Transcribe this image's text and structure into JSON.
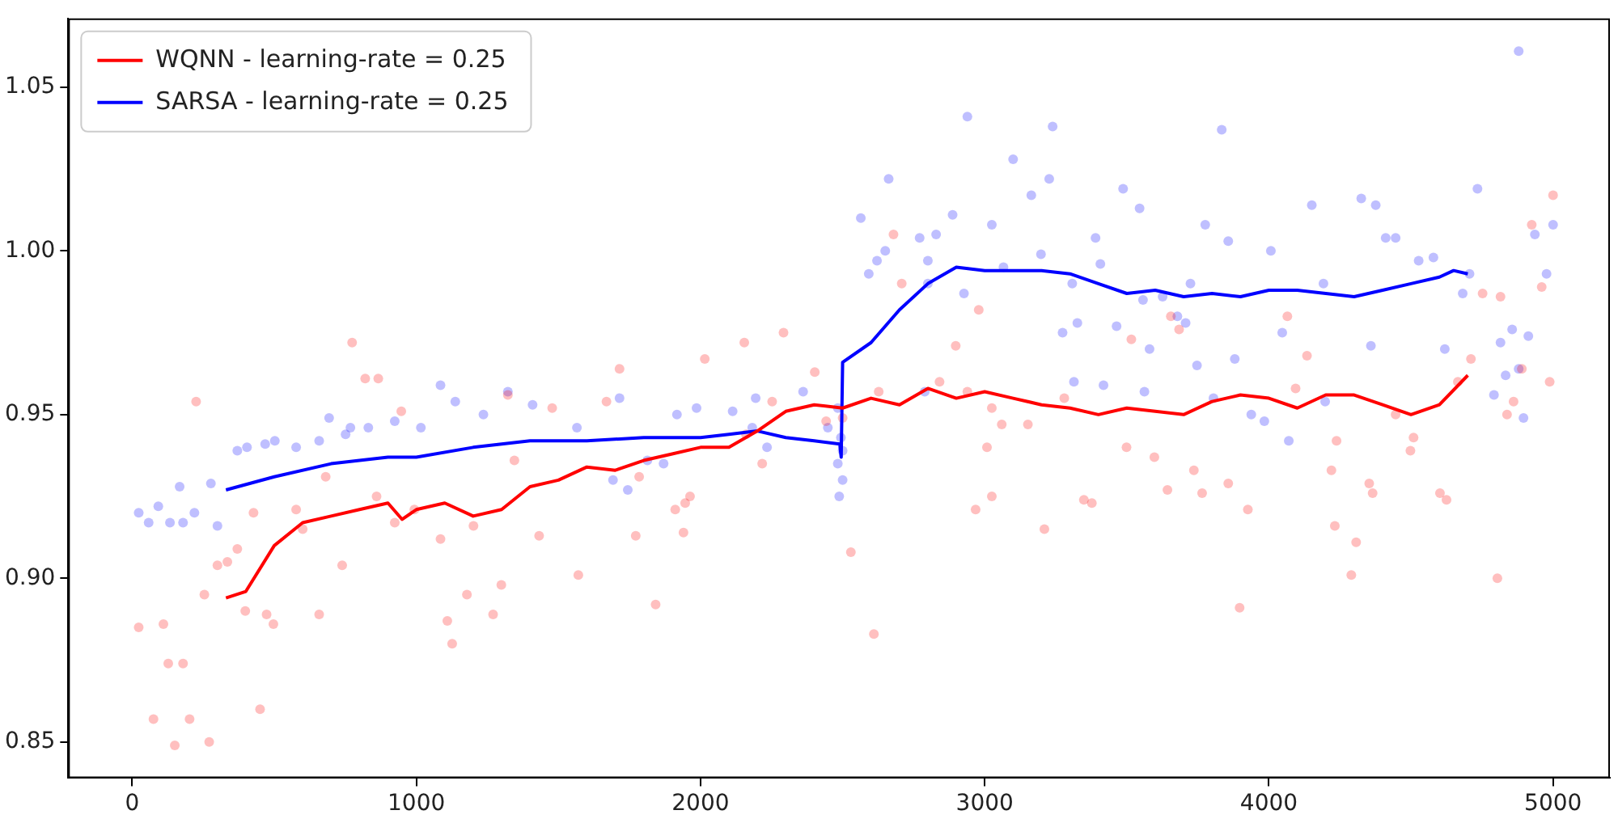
{
  "chart_data": {
    "type": "scatter",
    "xlim": [
      -225,
      5200
    ],
    "ylim": [
      0.839,
      1.071
    ],
    "xticks": [
      0,
      1000,
      2000,
      3000,
      4000,
      5000
    ],
    "yticks": [
      {
        "value": 0.85,
        "label": "0.85"
      },
      {
        "value": 0.9,
        "label": "0.90"
      },
      {
        "value": 0.95,
        "label": "0.95"
      },
      {
        "value": 1.0,
        "label": "1.00"
      },
      {
        "value": 1.05,
        "label": "1.05"
      }
    ],
    "grid": false,
    "legend": "top left",
    "series": [
      {
        "marker": "circle",
        "color": "#ff0000",
        "x": [
          23,
          75,
          110,
          127,
          179,
          150,
          202,
          225,
          271,
          254,
          300,
          335,
          370,
          398,
          427,
          450,
          473,
          497,
          577,
          600,
          681,
          658,
          739,
          774,
          820,
          866,
          924,
          860,
          947,
          993,
          1085,
          1109,
          1126,
          1201,
          1178,
          1270,
          1299,
          1345,
          1322,
          1432,
          1478,
          1570,
          1669,
          1715,
          1784,
          1842,
          1772,
          1911,
          1946,
          1963,
          1940,
          2015,
          2154,
          2160,
          2217,
          2252,
          2292,
          2402,
          2442,
          2500,
          2529,
          2610,
          2679,
          2708,
          2627,
          2898,
          2979,
          2939,
          2841,
          3025,
          3025,
          3060,
          3152,
          3210,
          3280,
          3349,
          3377,
          3008,
          2968,
          3499,
          3516,
          3655,
          3684,
          3597,
          3643,
          3765,
          3736,
          3857,
          3897,
          3926,
          4065,
          4094,
          4134,
          4220,
          4232,
          4307,
          4290,
          4238,
          4353,
          4365,
          4446,
          4498,
          4509,
          4602,
          4625,
          4665,
          4711,
          4752,
          4815,
          4838,
          4861,
          4890,
          4804,
          4988,
          5000,
          4960,
          4925
        ],
        "values": [
          0.885,
          0.857,
          0.886,
          0.874,
          0.874,
          0.849,
          0.857,
          0.954,
          0.85,
          0.895,
          0.904,
          0.905,
          0.909,
          0.89,
          0.92,
          0.86,
          0.889,
          0.886,
          0.921,
          0.915,
          0.931,
          0.889,
          0.904,
          0.972,
          0.961,
          0.961,
          0.917,
          0.925,
          0.951,
          0.921,
          0.912,
          0.887,
          0.88,
          0.916,
          0.895,
          0.889,
          0.898,
          0.936,
          0.956,
          0.913,
          0.952,
          0.901,
          0.954,
          0.964,
          0.931,
          0.892,
          0.913,
          0.921,
          0.923,
          0.925,
          0.914,
          0.967,
          0.972,
          0.944,
          0.935,
          0.954,
          0.975,
          0.963,
          0.948,
          0.949,
          0.908,
          0.883,
          1.005,
          0.99,
          0.957,
          0.971,
          0.982,
          0.957,
          0.96,
          0.952,
          0.925,
          0.947,
          0.947,
          0.915,
          0.955,
          0.924,
          0.923,
          0.94,
          0.921,
          0.94,
          0.973,
          0.98,
          0.976,
          0.937,
          0.927,
          0.926,
          0.933,
          0.929,
          0.891,
          0.921,
          0.98,
          0.958,
          0.968,
          0.933,
          0.916,
          0.911,
          0.901,
          0.942,
          0.929,
          0.926,
          0.95,
          0.939,
          0.943,
          0.926,
          0.924,
          0.96,
          0.967,
          0.987,
          0.986,
          0.95,
          0.954,
          0.964,
          0.9,
          0.96,
          1.017,
          0.989,
          1.008
        ]
      },
      {
        "marker": "circle",
        "color": "#0000ff",
        "x": [
          23,
          58,
          92,
          133,
          179,
          219,
          167,
          300,
          277,
          370,
          404,
          468,
          502,
          577,
          658,
          693,
          751,
          768,
          831,
          924,
          1016,
          1085,
          1137,
          1236,
          1322,
          1409,
          1565,
          1715,
          1692,
          1744,
          1813,
          1870,
          1917,
          1986,
          2113,
          2182,
          2194,
          2234,
          2361,
          2448,
          2483,
          2488,
          2483,
          2494,
          2500,
          2500,
          2662,
          2650,
          2564,
          2592,
          2621,
          2771,
          2800,
          2800,
          2829,
          2789,
          2887,
          2927,
          2939,
          3025,
          3066,
          3100,
          3164,
          3227,
          3198,
          3239,
          3274,
          3308,
          3326,
          3390,
          3407,
          3418,
          3314,
          3464,
          3487,
          3545,
          3557,
          3580,
          3562,
          3626,
          3678,
          3707,
          3724,
          3747,
          3776,
          3805,
          3834,
          3857,
          3880,
          3938,
          3984,
          4007,
          4047,
          4070,
          4151,
          4192,
          4198,
          4325,
          4359,
          4376,
          4411,
          4446,
          4527,
          4579,
          4619,
          4682,
          4706,
          4734,
          4792,
          4815,
          4833,
          4856,
          4879,
          4913,
          4977,
          4936,
          5000,
          4879,
          4896
        ],
        "values": [
          0.92,
          0.917,
          0.922,
          0.917,
          0.917,
          0.92,
          0.928,
          0.916,
          0.929,
          0.939,
          0.94,
          0.941,
          0.942,
          0.94,
          0.942,
          0.949,
          0.944,
          0.946,
          0.946,
          0.948,
          0.946,
          0.959,
          0.954,
          0.95,
          0.957,
          0.953,
          0.946,
          0.955,
          0.93,
          0.927,
          0.936,
          0.935,
          0.95,
          0.952,
          0.951,
          0.946,
          0.955,
          0.94,
          0.957,
          0.946,
          0.952,
          0.925,
          0.935,
          0.943,
          0.93,
          0.939,
          1.022,
          1.0,
          1.01,
          0.993,
          0.997,
          1.004,
          0.997,
          0.99,
          1.005,
          0.957,
          1.011,
          0.987,
          1.041,
          1.008,
          0.995,
          1.028,
          1.017,
          1.022,
          0.999,
          1.038,
          0.975,
          0.99,
          0.978,
          1.004,
          0.996,
          0.959,
          0.96,
          0.977,
          1.019,
          1.013,
          0.985,
          0.97,
          0.957,
          0.986,
          0.98,
          0.978,
          0.99,
          0.965,
          1.008,
          0.955,
          1.037,
          1.003,
          0.967,
          0.95,
          0.948,
          1.0,
          0.975,
          0.942,
          1.014,
          0.99,
          0.954,
          1.016,
          0.971,
          1.014,
          1.004,
          1.004,
          0.997,
          0.998,
          0.97,
          0.987,
          0.993,
          1.019,
          0.956,
          0.972,
          0.962,
          0.976,
          0.964,
          0.974,
          0.993,
          1.005,
          1.008,
          1.061,
          0.949
        ]
      },
      {
        "type": "line",
        "marker": "none",
        "name": "WQNN - learning-rate = 0.25",
        "color": "#ff0000",
        "x": [
          330,
          400,
          500,
          600,
          700,
          800,
          900,
          950,
          1000,
          1100,
          1200,
          1300,
          1400,
          1500,
          1600,
          1700,
          1800,
          1900,
          2000,
          2100,
          2200,
          2300,
          2400,
          2500,
          2600,
          2700,
          2800,
          2900,
          3000,
          3100,
          3200,
          3300,
          3400,
          3500,
          3600,
          3700,
          3800,
          3900,
          4000,
          4100,
          4200,
          4300,
          4400,
          4500,
          4600,
          4700
        ],
        "values": [
          0.894,
          0.896,
          0.91,
          0.917,
          0.919,
          0.921,
          0.923,
          0.918,
          0.921,
          0.923,
          0.919,
          0.921,
          0.928,
          0.93,
          0.934,
          0.933,
          0.936,
          0.938,
          0.94,
          0.94,
          0.945,
          0.951,
          0.953,
          0.952,
          0.955,
          0.953,
          0.958,
          0.955,
          0.957,
          0.955,
          0.953,
          0.952,
          0.95,
          0.952,
          0.951,
          0.95,
          0.954,
          0.956,
          0.955,
          0.952,
          0.956,
          0.956,
          0.953,
          0.95,
          0.953,
          0.962
        ]
      },
      {
        "type": "line",
        "marker": "none",
        "name": "SARSA - learning-rate = 0.25",
        "color": "#0000ff",
        "x": [
          330,
          500,
          700,
          900,
          1000,
          1200,
          1400,
          1600,
          1800,
          2000,
          2100,
          2200,
          2300,
          2400,
          2490,
          2495,
          2500,
          2600,
          2700,
          2800,
          2900,
          3000,
          3100,
          3200,
          3300,
          3400,
          3500,
          3600,
          3700,
          3800,
          3900,
          4000,
          4100,
          4200,
          4300,
          4400,
          4500,
          4600,
          4650,
          4700
        ],
        "values": [
          0.927,
          0.931,
          0.935,
          0.937,
          0.937,
          0.94,
          0.942,
          0.942,
          0.943,
          0.943,
          0.944,
          0.945,
          0.943,
          0.942,
          0.941,
          0.937,
          0.966,
          0.972,
          0.982,
          0.99,
          0.995,
          0.994,
          0.994,
          0.994,
          0.993,
          0.99,
          0.987,
          0.988,
          0.986,
          0.987,
          0.986,
          0.988,
          0.988,
          0.987,
          0.986,
          0.988,
          0.99,
          0.992,
          0.994,
          0.993
        ]
      }
    ]
  }
}
